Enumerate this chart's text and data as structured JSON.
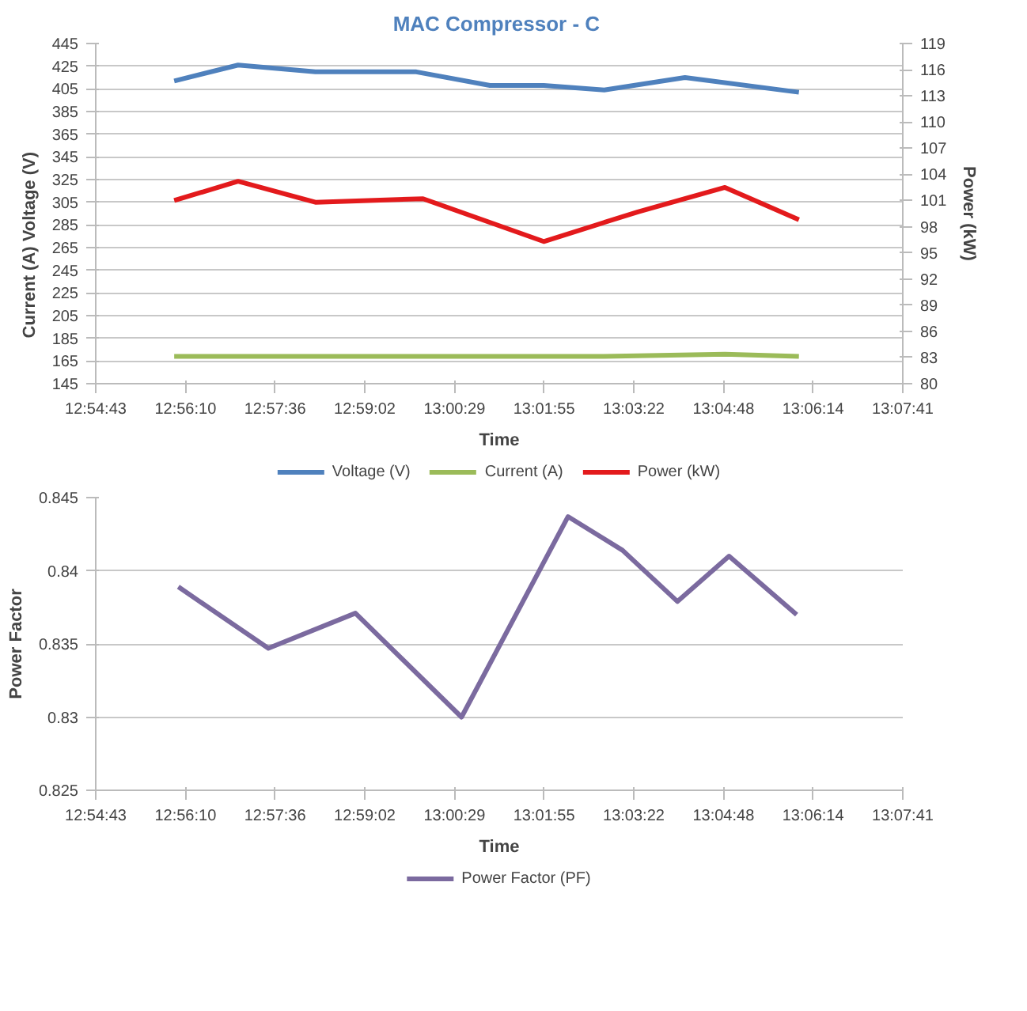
{
  "chart_data": [
    {
      "type": "line",
      "title": "MAC  Compressor - C",
      "xlabel": "Time",
      "ylabel": "Current (A)              Voltage (V)",
      "y2label": "Power (kW)",
      "xlim": [
        12.912,
        13.128
      ],
      "xticks": [
        {
          "value": 12.912,
          "label": "12:54:43"
        },
        {
          "value": 12.936,
          "label": "12:56:10"
        },
        {
          "value": 12.96,
          "label": "12:57:36"
        },
        {
          "value": 12.984,
          "label": "12:59:02"
        },
        {
          "value": 13.008,
          "label": "13:00:29"
        },
        {
          "value": 13.032,
          "label": "13:01:55"
        },
        {
          "value": 13.056,
          "label": "13:03:22"
        },
        {
          "value": 13.08,
          "label": "13:04:48"
        },
        {
          "value": 13.104,
          "label": "13:06:14"
        },
        {
          "value": 13.128,
          "label": "13:07:41"
        }
      ],
      "ylim": [
        145,
        445
      ],
      "yticks": [
        145,
        165,
        185,
        205,
        225,
        245,
        265,
        285,
        305,
        325,
        345,
        365,
        385,
        405,
        425,
        445
      ],
      "y2lim": [
        80,
        119
      ],
      "y2ticks": [
        80,
        83,
        86,
        89,
        92,
        95,
        98,
        101,
        104,
        107,
        110,
        113,
        116,
        119
      ],
      "grid": "y",
      "legend": "bottom",
      "marker": "none",
      "line_style": "solid",
      "series": [
        {
          "name": "Voltage (V)",
          "color": "#4f81bd",
          "x": [
            12.933,
            12.9501,
            12.9708,
            12.9978,
            13.0175,
            13.0319,
            13.0481,
            13.0697,
            13.1002
          ],
          "values": [
            412,
            426,
            420,
            420,
            408,
            408,
            404,
            415,
            402
          ]
        },
        {
          "name": "Current (A)",
          "color": "#9bbb59",
          "x": [
            12.933,
            12.9978,
            13.0481,
            13.0804,
            13.1002
          ],
          "values": [
            169,
            169,
            169,
            171,
            169
          ]
        },
        {
          "name": "Power (kW)",
          "color": "#e31a1c",
          "axis": "y2",
          "x": [
            12.933,
            12.9501,
            12.9708,
            12.9996,
            13.0319,
            13.0571,
            13.0804,
            13.1002
          ],
          "values": [
            101.0,
            103.2,
            100.8,
            101.2,
            96.3,
            99.7,
            102.5,
            98.8
          ]
        }
      ]
    },
    {
      "type": "line",
      "xlabel": "Time",
      "ylabel": "Power Factor",
      "xlim": [
        12.912,
        13.128
      ],
      "xticks": [
        {
          "value": 12.912,
          "label": "12:54:43"
        },
        {
          "value": 12.936,
          "label": "12:56:10"
        },
        {
          "value": 12.96,
          "label": "12:57:36"
        },
        {
          "value": 12.984,
          "label": "12:59:02"
        },
        {
          "value": 13.008,
          "label": "13:00:29"
        },
        {
          "value": 13.032,
          "label": "13:01:55"
        },
        {
          "value": 13.056,
          "label": "13:03:22"
        },
        {
          "value": 13.08,
          "label": "13:04:48"
        },
        {
          "value": 13.104,
          "label": "13:06:14"
        },
        {
          "value": 13.128,
          "label": "13:07:41"
        }
      ],
      "ylim": [
        0.825,
        0.845
      ],
      "yticks": [
        0.825,
        0.83,
        0.835,
        0.84,
        0.845
      ],
      "grid": "y",
      "legend": "bottom",
      "marker": "none",
      "line_style": "solid",
      "series": [
        {
          "name": "Power Factor (PF)",
          "color": "#7b6a9f",
          "x": [
            12.9341,
            12.9582,
            12.9815,
            13.0099,
            13.0384,
            13.053,
            13.0677,
            13.0815,
            13.0996
          ],
          "values": [
            0.8389,
            0.8347,
            0.8371,
            0.83,
            0.8437,
            0.8414,
            0.8379,
            0.841,
            0.837
          ]
        }
      ]
    }
  ]
}
